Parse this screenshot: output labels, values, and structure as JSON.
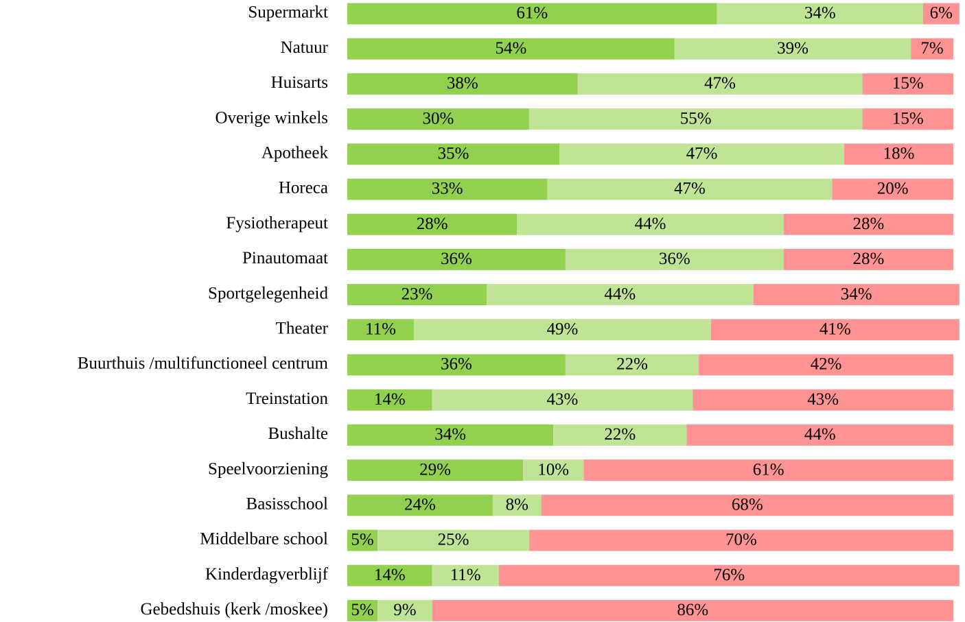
{
  "chart_data": {
    "type": "bar",
    "orientation": "horizontal",
    "stacked": true,
    "categories": [
      "Supermarkt",
      "Natuur",
      "Huisarts",
      "Overige winkels",
      "Apotheek",
      "Horeca",
      "Fysiotherapeut",
      "Pinautomaat",
      "Sportgelegenheid",
      "Theater",
      "Buurthuis /multifunctioneel centrum",
      "Treinstation",
      "Bushalte",
      "Speelvoorziening",
      "Basisschool",
      "Middelbare school",
      "Kinderdagverblijf",
      "Gebedshuis (kerk /moskee)"
    ],
    "xlim": [
      0,
      100
    ],
    "series": [
      {
        "color": "#92d050",
        "values": [
          61,
          54,
          38,
          30,
          35,
          33,
          28,
          36,
          23,
          11,
          36,
          14,
          34,
          29,
          24,
          5,
          14,
          5
        ],
        "value_labels": [
          "61%",
          "54%",
          "38%",
          "30%",
          "35%",
          "33%",
          "28%",
          "36%",
          "23%",
          "11%",
          "36%",
          "14%",
          "34%",
          "29%",
          "24%",
          "5%",
          "14%",
          "5%"
        ]
      },
      {
        "color": "#c0e496",
        "values": [
          34,
          39,
          47,
          55,
          47,
          47,
          44,
          36,
          44,
          49,
          22,
          43,
          22,
          10,
          8,
          25,
          11,
          9
        ],
        "value_labels": [
          "34%",
          "39%",
          "47%",
          "55%",
          "47%",
          "47%",
          "44%",
          "36%",
          "44%",
          "49%",
          "22%",
          "43%",
          "22%",
          "10%",
          "8%",
          "25%",
          "11%",
          "9%"
        ]
      },
      {
        "color": "#ff9393",
        "values": [
          6,
          7,
          15,
          15,
          18,
          20,
          28,
          28,
          34,
          41,
          42,
          43,
          44,
          61,
          68,
          70,
          76,
          86
        ],
        "value_labels": [
          "6%",
          "7%",
          "15%",
          "15%",
          "18%",
          "20%",
          "28%",
          "28%",
          "34%",
          "41%",
          "42%",
          "43%",
          "44%",
          "61%",
          "68%",
          "70%",
          "76%",
          "86%"
        ]
      }
    ]
  }
}
